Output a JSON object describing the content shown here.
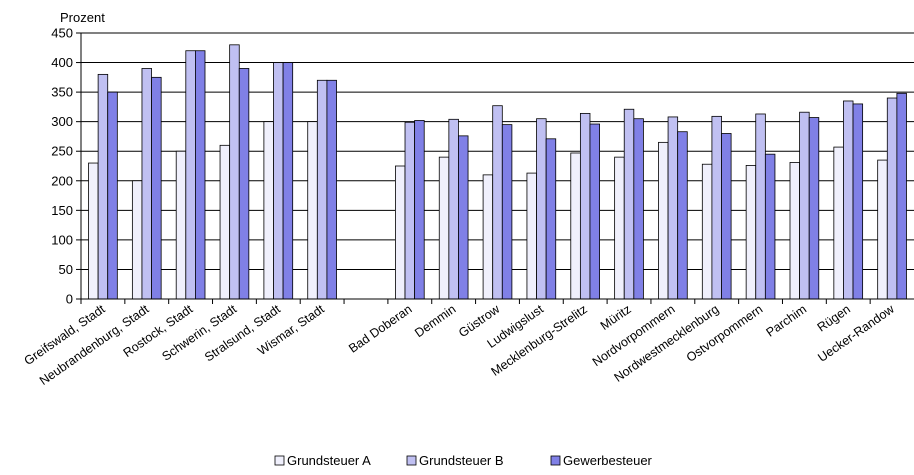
{
  "chart_data": {
    "type": "bar",
    "ylabel": "Prozent",
    "ylim": [
      0,
      450
    ],
    "yticks": [
      0,
      50,
      100,
      150,
      200,
      250,
      300,
      350,
      400,
      450
    ],
    "grid": true,
    "legend_position": "bottom",
    "categories": [
      "Greifswald, Stadt",
      "Neubrandenburg, Stadt",
      "Rostock, Stadt",
      "Schwerin, Stadt",
      "Stralsund, Stadt",
      "Wismar, Stadt",
      "",
      "Bad Doberan",
      "Demmin",
      "Güstrow",
      "Ludwigslust",
      "Mecklenburg-Strelitz",
      "Müritz",
      "Nordvorpommern",
      "Nordwestmecklenburg",
      "Ostvorpommern",
      "Parchim",
      "Rügen",
      "Uecker-Randow"
    ],
    "series": [
      {
        "name": "Grundsteuer A",
        "color": "#f0f0fc",
        "values": [
          230,
          200,
          250,
          260,
          300,
          300,
          null,
          225,
          240,
          210,
          213,
          247,
          240,
          265,
          228,
          226,
          231,
          257,
          235
        ]
      },
      {
        "name": "Grundsteuer B",
        "color": "#c0c0f2",
        "values": [
          380,
          390,
          420,
          430,
          400,
          370,
          null,
          299,
          304,
          327,
          305,
          314,
          321,
          308,
          309,
          313,
          316,
          335,
          340
        ]
      },
      {
        "name": "Gewerbesteuer",
        "color": "#8080e6",
        "values": [
          350,
          375,
          420,
          390,
          400,
          370,
          null,
          302,
          276,
          295,
          271,
          296,
          305,
          283,
          280,
          245,
          307,
          330,
          348
        ]
      }
    ]
  }
}
